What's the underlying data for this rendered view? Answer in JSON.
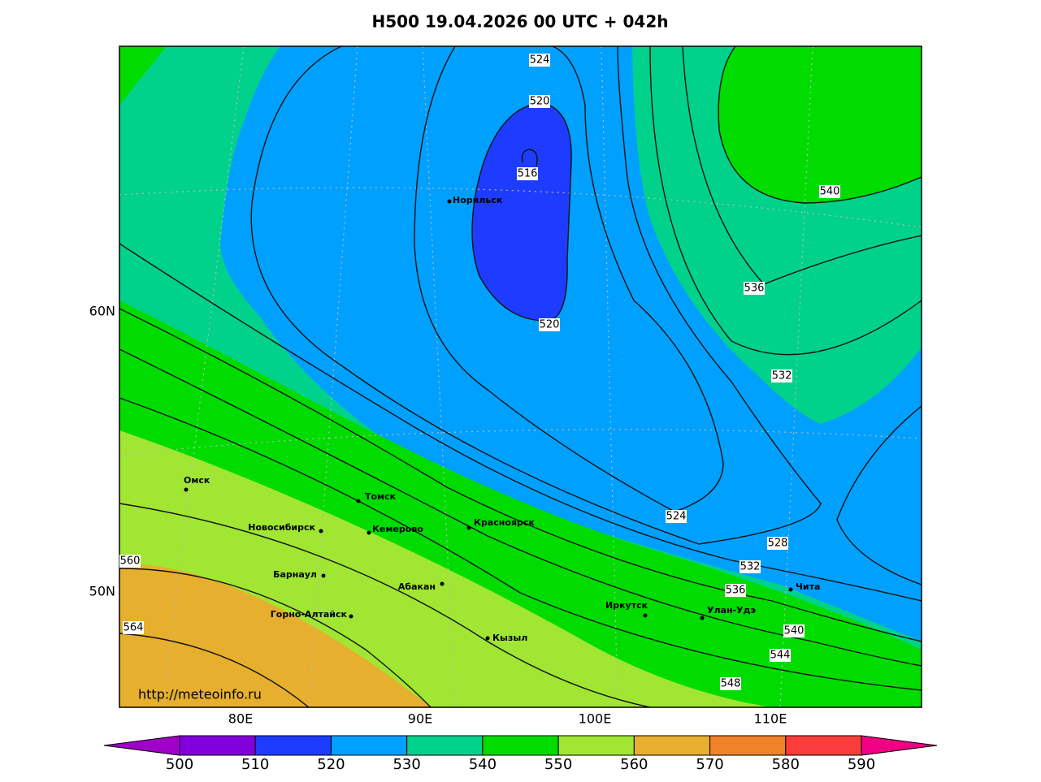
{
  "title": "H500  19.04.2026 00 UTC + 042h",
  "lat_labels": [
    "60N",
    "50N"
  ],
  "lon_labels": [
    "80E",
    "90E",
    "100E",
    "110E"
  ],
  "credit": "http://meteoinfo.ru",
  "contour_labels": [
    524,
    520,
    516,
    540,
    536,
    520,
    532,
    524,
    528,
    560,
    532,
    536,
    564,
    540,
    544,
    548
  ],
  "cities": [
    "Норильск",
    "Омск",
    "Томск",
    "Новосибирск",
    "Кемерово",
    "Красноярск",
    "Барнаул",
    "Абакан",
    "Горно-Алтайск",
    "Кызыл",
    "Иркутск",
    "Улан-Удэ",
    "Чита"
  ],
  "colorbar": {
    "ticks": [
      500,
      510,
      520,
      530,
      540,
      550,
      560,
      570,
      580,
      590
    ],
    "colors": [
      "#8200dc",
      "#1e3cff",
      "#00a0ff",
      "#00d28c",
      "#00dc00",
      "#a0e632",
      "#e6af2d",
      "#f08228",
      "#fa3c3c"
    ],
    "under": "#a000c8",
    "over": "#f00082"
  }
}
